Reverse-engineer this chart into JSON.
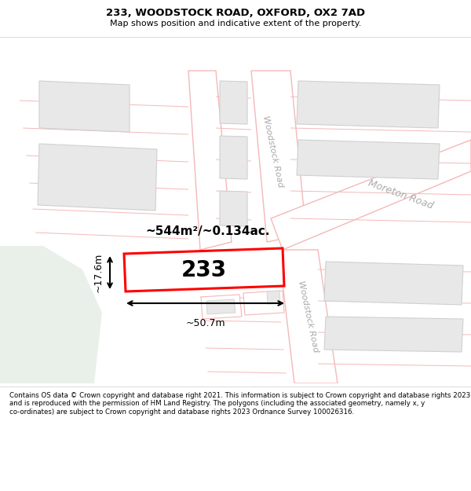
{
  "title_line1": "233, WOODSTOCK ROAD, OXFORD, OX2 7AD",
  "title_line2": "Map shows position and indicative extent of the property.",
  "footer_text": "Contains OS data © Crown copyright and database right 2021. This information is subject to Crown copyright and database rights 2023 and is reproduced with the permission of HM Land Registry. The polygons (including the associated geometry, namely x, y co-ordinates) are subject to Crown copyright and database rights 2023 Ordnance Survey 100026316.",
  "area_label": "~544m²/~0.134ac.",
  "width_label": "~50.7m",
  "height_label": "~17.6m",
  "property_number": "233",
  "map_bg": "#ffffff",
  "road_line_color": "#f5b8b8",
  "building_fill": "#e8e8e8",
  "building_edge": "#d0d0d0",
  "plot_line_color": "#f5b8b8",
  "highlight_fill": "#ffffff",
  "highlight_stroke": "#ff0000",
  "green_area_color": "#e8f0e8",
  "road_label_color": "#aaaaaa",
  "footer_bg": "#ffffff",
  "header_bg": "#ffffff",
  "dim_color": "#000000"
}
